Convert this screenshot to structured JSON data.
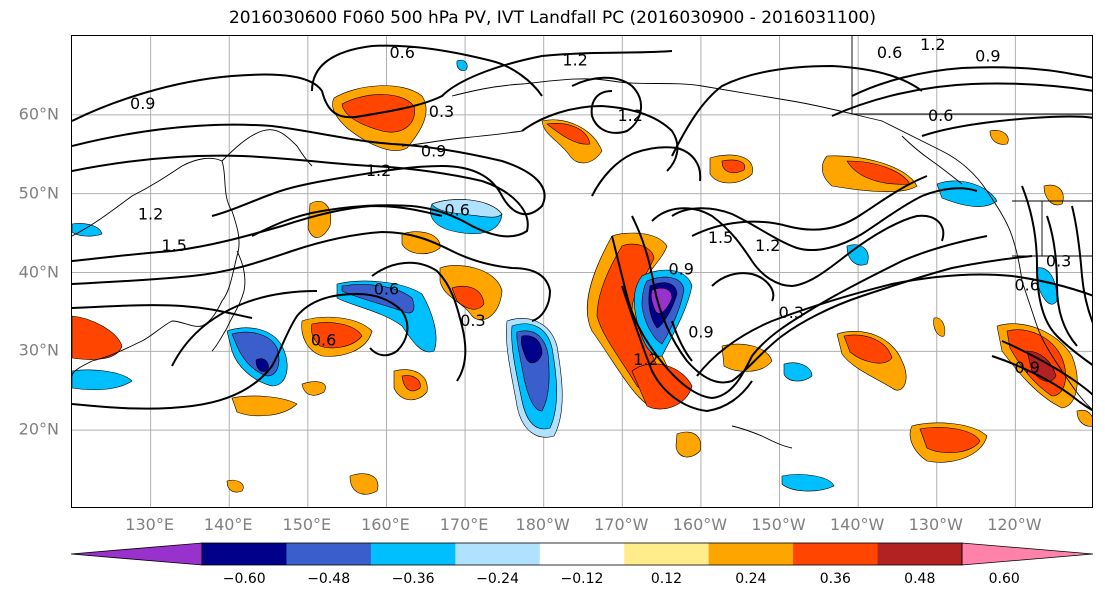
{
  "title": "2016030600 F060 500 hPa PV, IVT Landfall PC (2016030900 - 2016031100)",
  "lat_labels": [
    {
      "text": "60°N",
      "lat": 60
    },
    {
      "text": "50°N",
      "lat": 50
    },
    {
      "text": "40°N",
      "lat": 40
    },
    {
      "text": "30°N",
      "lat": 30
    },
    {
      "text": "20°N",
      "lat": 20
    }
  ],
  "lon_labels": [
    {
      "text": "130°E",
      "lon": 130
    },
    {
      "text": "140°E",
      "lon": 140
    },
    {
      "text": "150°E",
      "lon": 150
    },
    {
      "text": "160°E",
      "lon": 160
    },
    {
      "text": "170°E",
      "lon": 170
    },
    {
      "text": "180°W",
      "lon": 180
    },
    {
      "text": "170°W",
      "lon": 190
    },
    {
      "text": "160°W",
      "lon": 200
    },
    {
      "text": "150°W",
      "lon": 210
    },
    {
      "text": "140°W",
      "lon": 220
    },
    {
      "text": "130°W",
      "lon": 230
    },
    {
      "text": "120°W",
      "lon": 240
    }
  ],
  "map_extent": {
    "lon_min": 120,
    "lon_max": 250,
    "lat_min": 10,
    "lat_max": 70
  },
  "colorbar": {
    "levels": [
      -0.6,
      -0.48,
      -0.36,
      -0.24,
      -0.12,
      0.12,
      0.24,
      0.36,
      0.48,
      0.6
    ],
    "tick_labels": [
      "−0.60",
      "−0.48",
      "−0.36",
      "−0.24",
      "−0.12",
      "0.12",
      "0.24",
      "0.36",
      "0.48",
      "0.60"
    ],
    "colors": [
      "#9932cc",
      "#00008b",
      "#3a5fcd",
      "#00bfff",
      "#b0e2ff",
      "#ffffff",
      "#ffec8b",
      "#ffa500",
      "#ff4500",
      "#b22222",
      "#ff82ab"
    ]
  },
  "contour_labels": [
    {
      "text": "0.6",
      "lon": 162,
      "lat": 68
    },
    {
      "text": "0.9",
      "lon": 129,
      "lat": 61.5
    },
    {
      "text": "1.2",
      "lon": 184,
      "lat": 67
    },
    {
      "text": "1.2",
      "lon": 191,
      "lat": 60
    },
    {
      "text": "0.3",
      "lon": 167,
      "lat": 60.5
    },
    {
      "text": "0.9",
      "lon": 166,
      "lat": 55.5
    },
    {
      "text": "1.2",
      "lon": 159,
      "lat": 53
    },
    {
      "text": "1.2",
      "lon": 130,
      "lat": 47.5
    },
    {
      "text": "1.5",
      "lon": 133,
      "lat": 43.5
    },
    {
      "text": "0.6",
      "lon": 169,
      "lat": 48
    },
    {
      "text": "0.6",
      "lon": 160,
      "lat": 38
    },
    {
      "text": "0.6",
      "lon": 152,
      "lat": 31.5
    },
    {
      "text": "0.3",
      "lon": 171,
      "lat": 34
    },
    {
      "text": "1.5",
      "lon": 202.5,
      "lat": 44.5
    },
    {
      "text": "1.2",
      "lon": 208.5,
      "lat": 43.5
    },
    {
      "text": "0.9",
      "lon": 197.5,
      "lat": 40.5
    },
    {
      "text": "0.9",
      "lon": 200,
      "lat": 32.5
    },
    {
      "text": "0.3",
      "lon": 211.5,
      "lat": 35
    },
    {
      "text": "1.2",
      "lon": 193,
      "lat": 29
    },
    {
      "text": "0.6",
      "lon": 224,
      "lat": 68
    },
    {
      "text": "1.2",
      "lon": 229.5,
      "lat": 69
    },
    {
      "text": "0.9",
      "lon": 236.5,
      "lat": 67.5
    },
    {
      "text": "0.6",
      "lon": 230.5,
      "lat": 60
    },
    {
      "text": "0.6",
      "lon": 241.5,
      "lat": 38.5
    },
    {
      "text": "0.3",
      "lon": 245.5,
      "lat": 41.5
    },
    {
      "text": "0.9",
      "lon": 241.5,
      "lat": 28
    }
  ]
}
